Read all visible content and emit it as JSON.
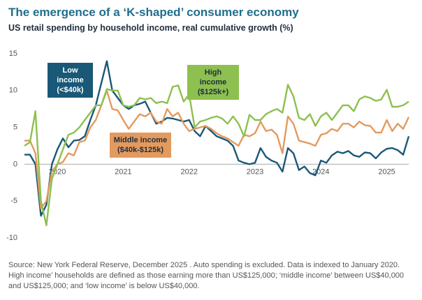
{
  "chart_data": {
    "type": "line",
    "title": "The emergence of a ‘K-shaped’ consumer economy",
    "subtitle": "US retail spending by household income, real cumulative growth (%)",
    "source": "Source: New York Federal Reserve, December 2025 . Auto spending is excluded. Data is indexed to January 2020. High income’ households are defined as those earning more than US$125,000; ‘middle income’ between US$40,000 and US$125,000; and ‘low income’ is below US$40,000.",
    "categories": [
      null,
      null,
      null,
      null,
      null,
      null,
      "2020",
      null,
      null,
      null,
      null,
      null,
      null,
      null,
      null,
      null,
      null,
      null,
      "2021",
      null,
      null,
      null,
      null,
      null,
      null,
      null,
      null,
      null,
      null,
      null,
      "2022",
      null,
      null,
      null,
      null,
      null,
      null,
      null,
      null,
      null,
      null,
      null,
      "2023",
      null,
      null,
      null,
      null,
      null,
      null,
      null,
      null,
      null,
      null,
      null,
      "2024",
      null,
      null,
      null,
      null,
      null,
      null,
      null,
      null,
      null,
      null,
      null,
      "2025",
      null,
      null,
      null,
      null
    ],
    "ylim": [
      -10,
      15
    ],
    "yticks": [
      -10,
      -5,
      0,
      5,
      10,
      15
    ],
    "grid": false,
    "series": [
      {
        "name": "Low income (<$40k)",
        "color": "#1a5877",
        "label_color": "#ffffff",
        "values": [
          1.3,
          1.3,
          0,
          -7,
          -5.5,
          0,
          2,
          3.5,
          2.3,
          3.2,
          3.3,
          3.8,
          6,
          8,
          11,
          14,
          10,
          9,
          8,
          7.5,
          8,
          8.2,
          8.5,
          7,
          5.5,
          5.8,
          6.3,
          6.2,
          6,
          5.8,
          6,
          4.5,
          3.8,
          5.2,
          4.5,
          3.8,
          3.5,
          3.2,
          2.5,
          0.5,
          0.2,
          0,
          0.2,
          2.2,
          1,
          0.5,
          0.2,
          -1,
          2.2,
          1.5,
          -0.8,
          -0.3,
          -1.2,
          -1.5,
          0.5,
          0.2,
          1.2,
          1.7,
          1.5,
          1.8,
          1.2,
          1.0,
          1.6,
          1.5,
          0.8,
          1.6,
          2.1,
          2.2,
          1.9,
          1.3,
          3.8
        ]
      },
      {
        "name": "Middle income ($40k-$125k)",
        "color": "#e39a5e",
        "label_color": "#1f2d3d",
        "values": [
          3.2,
          3.2,
          1.5,
          -6,
          -5,
          -1,
          0,
          0.3,
          1.5,
          1.2,
          3,
          3.2,
          5,
          6,
          8,
          10,
          7.5,
          7.3,
          6,
          4.8,
          5.8,
          6.8,
          6.5,
          7,
          5.8,
          5.5,
          7.5,
          6.5,
          7,
          5.5,
          4.5,
          4.8,
          5,
          5.2,
          4.8,
          4.2,
          3.8,
          3.5,
          3,
          2.5,
          4,
          3.8,
          4.2,
          5.8,
          4.5,
          4.7,
          4,
          1.5,
          6.5,
          5.5,
          3.2,
          3,
          2.8,
          2.5,
          4,
          4.2,
          4.8,
          4.5,
          5.5,
          5.5,
          5,
          5.8,
          5.3,
          5.2,
          4.3,
          4.3,
          6,
          4.5,
          5.5,
          4.8,
          6.4
        ]
      },
      {
        "name": "High income ($125k+)",
        "color": "#8dc04f",
        "label_color": "#1f2d3d",
        "values": [
          2.5,
          3,
          7.2,
          -5,
          -8.3,
          -2,
          0,
          2,
          4,
          4.3,
          5,
          6,
          7,
          8,
          8,
          10.2,
          10,
          10,
          8,
          7.8,
          8,
          9,
          8.8,
          9,
          8.3,
          8.5,
          8.3,
          10.5,
          10.7,
          8.5,
          9.5,
          5,
          5.8,
          6,
          6.3,
          6.5,
          6.2,
          5.5,
          6.5,
          5.5,
          3.8,
          6.7,
          6,
          6,
          6.8,
          7.2,
          7.5,
          7,
          10.8,
          9.2,
          6.3,
          6,
          6.8,
          5.2,
          6.5,
          7,
          6,
          7,
          8,
          8,
          7.2,
          8.8,
          9.2,
          9,
          8.6,
          8.8,
          10.1,
          7.8,
          7.8,
          8,
          8.5
        ]
      }
    ]
  }
}
